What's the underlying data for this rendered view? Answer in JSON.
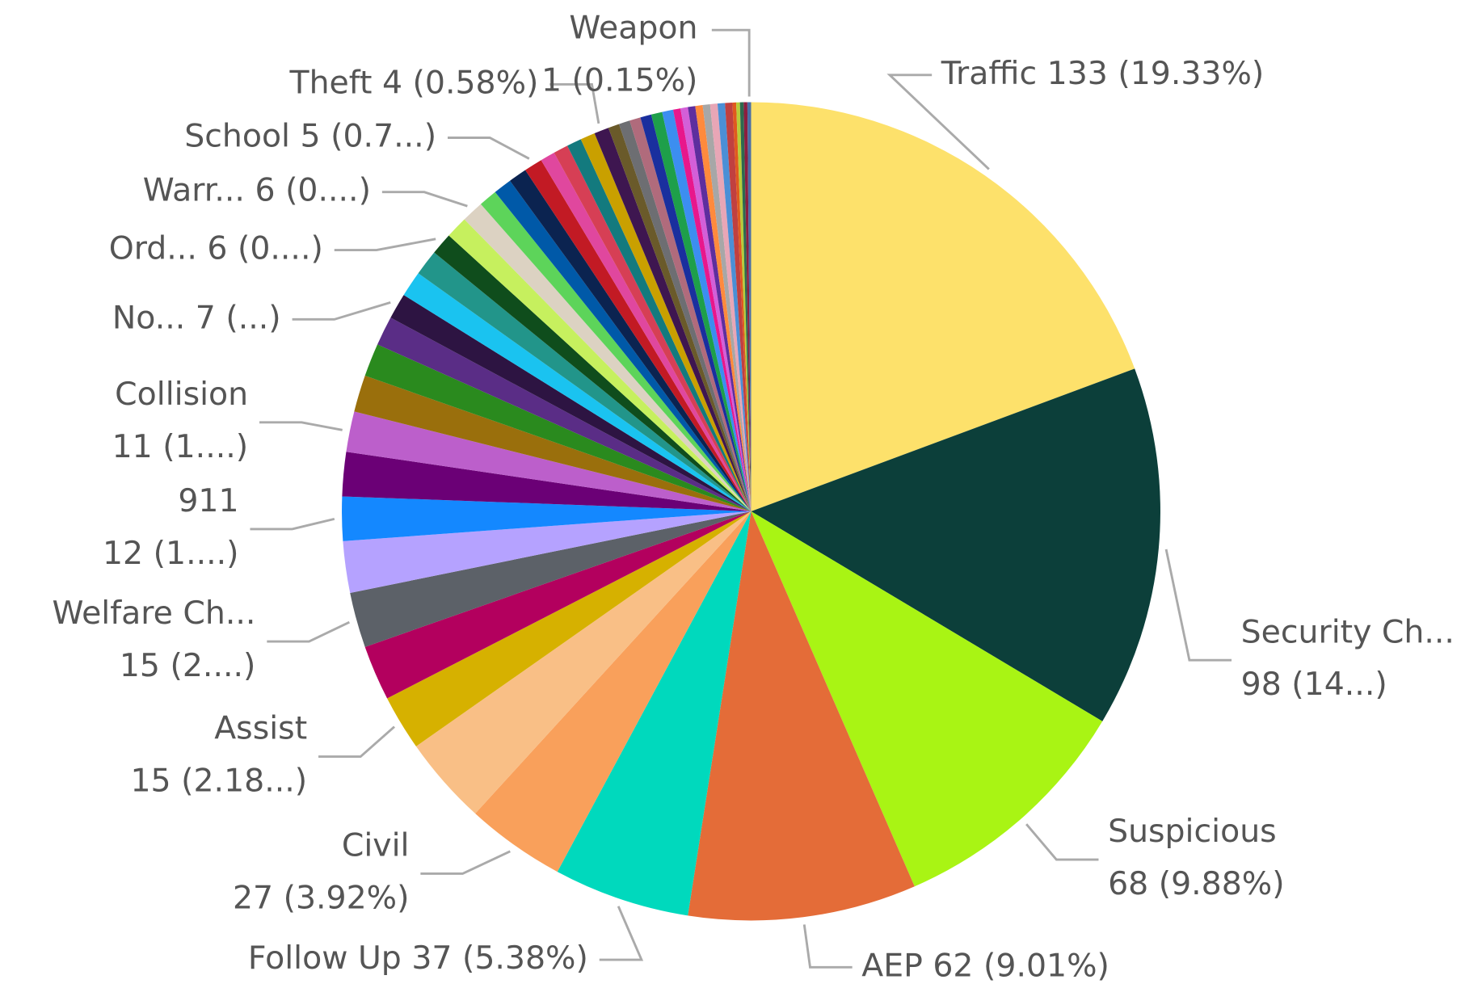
{
  "chart_data": {
    "type": "pie",
    "categories": [
      "Traffic",
      "Security Ch...",
      "Suspicious",
      "AEP",
      "Follow Up",
      "Civil",
      null,
      "Assist",
      null,
      "Welfare Ch...",
      null,
      "911",
      null,
      "Collision",
      null,
      null,
      null,
      "No...",
      null,
      null,
      "Ord...",
      null,
      "Warr...",
      null,
      null,
      null,
      "School",
      null,
      null,
      null,
      null,
      "Theft",
      null,
      null,
      null,
      null,
      null,
      null,
      null,
      null,
      null,
      null,
      null,
      null,
      null,
      null,
      null,
      null,
      null,
      null,
      "Weapon"
    ],
    "values": [
      133,
      98,
      68,
      62,
      37,
      27,
      24,
      15,
      15,
      15,
      14,
      12,
      12,
      11,
      10,
      9,
      8,
      7,
      7,
      7,
      6,
      6,
      6,
      5,
      5,
      5,
      5,
      4,
      4,
      4,
      4,
      4,
      3,
      3,
      3,
      3,
      3,
      3,
      2,
      2,
      2,
      2,
      2,
      2,
      2,
      2,
      1,
      1,
      1,
      1,
      1
    ],
    "value_labels": [
      "133 (19.33%)",
      "98 (14...)",
      "68 (9.88%)",
      "62 (9.01%)",
      "37 (5.38%)",
      "27 (3.92%)",
      null,
      "15 (2.18...)",
      null,
      "15 (2....)",
      null,
      "12 (1....)",
      null,
      "11 (1....)",
      null,
      null,
      null,
      "7 (...)",
      null,
      null,
      "6 (0....)",
      null,
      "6 (0....)",
      null,
      null,
      null,
      "5 (0.7...)",
      null,
      null,
      null,
      null,
      "4 (0.58%)",
      null,
      null,
      null,
      null,
      null,
      null,
      null,
      null,
      null,
      null,
      null,
      null,
      null,
      null,
      null,
      null,
      null,
      null,
      "1 (0.15%)"
    ],
    "colors": [
      "#FDE16B",
      "#0C3F3A",
      "#A9F414",
      "#E46C38",
      "#00D9BD",
      "#F9A05B",
      "#F9BF86",
      "#D6B100",
      "#B3005E",
      "#5C6168",
      "#B5A2FF",
      "#1488FF",
      "#6B0076",
      "#BC5FCB",
      "#9A6F0C",
      "#2A8A1E",
      "#5A2D86",
      "#2D1442",
      "#1AC3F0",
      "#22958A",
      "#0F4D1C",
      "#C6F05E",
      "#DCD2C2",
      "#5DD45A",
      "#0059A8",
      "#0B2350",
      "#C21A24",
      "#E0479E",
      "#D63F55",
      "#137A7E",
      "#C9A000",
      "#3E1650",
      "#6A5A2A",
      "#6D6E72",
      "#B06B7C",
      "#1A2F9E",
      "#1E9F4A",
      "#3C8EF0",
      "#E8178C",
      "#D35FD8",
      "#5E2E9E",
      "#FF8A3D",
      "#A7A7A7",
      "#E8A6B6",
      "#4B8FD6",
      "#C04040",
      "#E05A1F",
      "#B8CC3A",
      "#2D6A4F",
      "#8B1E3F",
      "#4A6FA5"
    ]
  }
}
